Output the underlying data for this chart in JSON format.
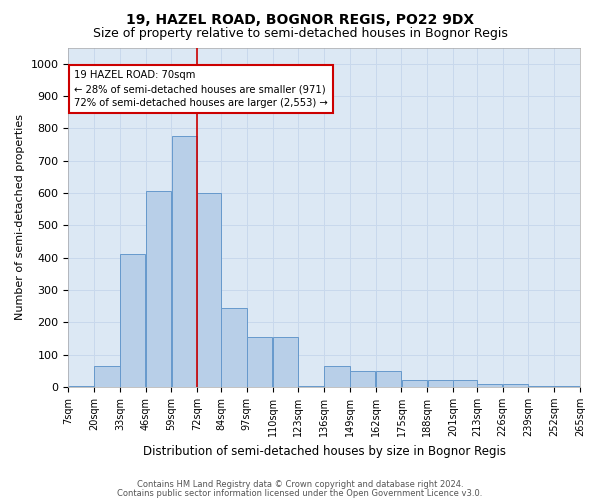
{
  "title": "19, HAZEL ROAD, BOGNOR REGIS, PO22 9DX",
  "subtitle": "Size of property relative to semi-detached houses in Bognor Regis",
  "xlabel": "Distribution of semi-detached houses by size in Bognor Regis",
  "ylabel": "Number of semi-detached properties",
  "footer1": "Contains HM Land Registry data © Crown copyright and database right 2024.",
  "footer2": "Contains public sector information licensed under the Open Government Licence v3.0.",
  "annotation_line1": "19 HAZEL ROAD: 70sqm",
  "annotation_line2": "← 28% of semi-detached houses are smaller (971)",
  "annotation_line3": "72% of semi-detached houses are larger (2,553) →",
  "bar_edges": [
    7,
    20,
    33,
    46,
    59,
    72,
    84,
    97,
    110,
    123,
    136,
    149,
    162,
    175,
    188,
    201,
    213,
    226,
    239,
    252,
    265
  ],
  "bar_heights": [
    2,
    65,
    410,
    605,
    775,
    600,
    245,
    155,
    155,
    2,
    65,
    50,
    50,
    20,
    20,
    20,
    10,
    10,
    2,
    2
  ],
  "bar_color": "#b8cfe8",
  "bar_edge_color": "#6699cc",
  "vline_x": 72,
  "vline_color": "#cc0000",
  "ylim": [
    0,
    1050
  ],
  "yticks": [
    0,
    100,
    200,
    300,
    400,
    500,
    600,
    700,
    800,
    900,
    1000
  ],
  "grid_color": "#c8d8ec",
  "bg_color": "#dce8f4",
  "annotation_box_color": "#cc0000",
  "title_fontsize": 10,
  "subtitle_fontsize": 9,
  "tick_label_fontsize": 7,
  "xlabel_fontsize": 8.5,
  "ylabel_fontsize": 8
}
